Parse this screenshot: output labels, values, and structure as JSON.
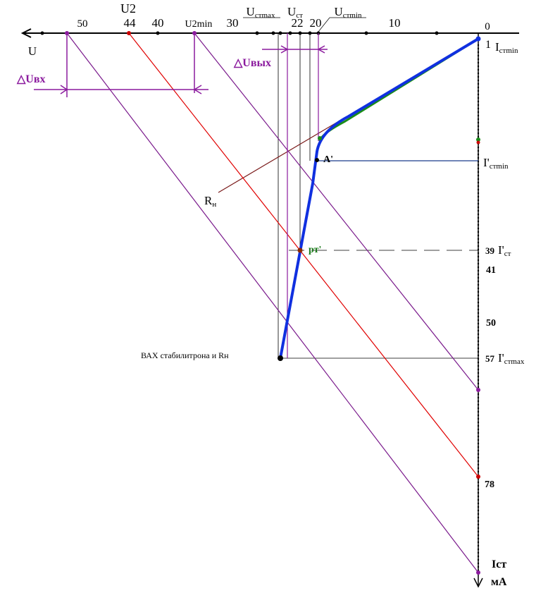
{
  "top_axis": {
    "axis_name": "U",
    "labels": [
      {
        "text": "50"
      },
      {
        "text": "U2"
      },
      {
        "text": "44"
      },
      {
        "text": "40"
      },
      {
        "text": "U2min"
      },
      {
        "text": "30"
      },
      {
        "text": "U",
        "sub": "стmax"
      },
      {
        "text": "U",
        "sub": "ст"
      },
      {
        "text": "22"
      },
      {
        "text": "20"
      },
      {
        "text": "U",
        "sub": "стmin"
      },
      {
        "text": "10"
      },
      {
        "text": "0"
      }
    ]
  },
  "right_axis": {
    "axis_name": "Iст",
    "unit": "мА",
    "labels": [
      {
        "text": "1"
      },
      {
        "text": "I",
        "sub": "стmin"
      },
      {
        "text": "I'",
        "sub": "стmin"
      },
      {
        "text": "39"
      },
      {
        "text": "I'",
        "sub": "ст"
      },
      {
        "text": "41"
      },
      {
        "text": "50"
      },
      {
        "text": "57"
      },
      {
        "text": "I'",
        "sub": "стmax"
      },
      {
        "text": "78"
      }
    ]
  },
  "annotations": {
    "delta_u_in": "△Uвх",
    "delta_u_out": "△Uвых",
    "load": {
      "text": "R",
      "sub": "н"
    },
    "point_a": "A'",
    "operating_point": "рт'",
    "caption": "ВАХ стабилитрона и Rн"
  }
}
